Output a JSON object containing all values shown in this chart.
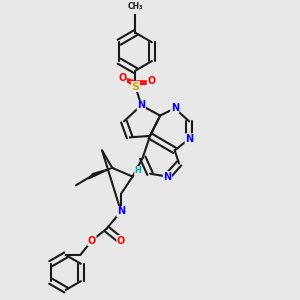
{
  "bgcolor": "#e8e8e8",
  "figsize": [
    3.0,
    3.0
  ],
  "dpi": 100,
  "bond_color": "#1a1a1a",
  "bond_width": 1.5,
  "atom_colors": {
    "N": "#0000ff",
    "O": "#ff0000",
    "S": "#ccaa00",
    "C": "#1a1a1a",
    "H": "#00aaaa"
  }
}
